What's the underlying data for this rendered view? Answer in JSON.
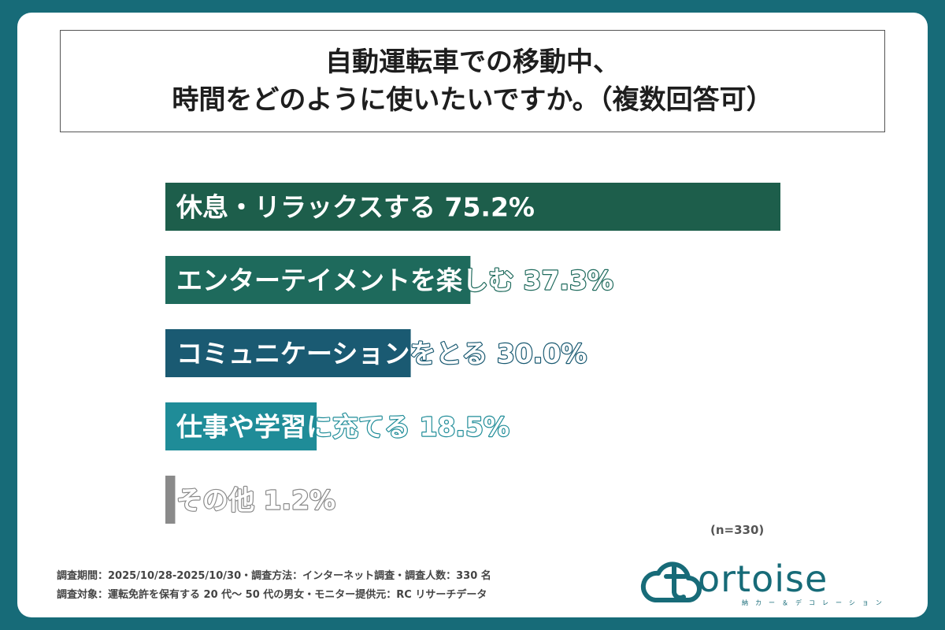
{
  "title": {
    "line1": "自動運転車での移動中、",
    "line2": "時間をどのように使いたいですか。（複数回答可）"
  },
  "chart_data": {
    "type": "bar",
    "orientation": "horizontal",
    "categories": [
      "休息・リラックスする",
      "エンターテイメントを楽しむ",
      "コミュニケーションをとる",
      "仕事や学習に充てる",
      "その他"
    ],
    "values": [
      75.2,
      37.3,
      30.0,
      18.5,
      1.2
    ],
    "value_labels": [
      "75.2%",
      "37.3%",
      "30.0%",
      "18.5%",
      "1.2%"
    ],
    "unit": "%",
    "xlim": [
      0,
      75.2
    ],
    "colors": [
      "#1d5e4b",
      "#1e6a5c",
      "#1a5a72",
      "#1f8c98",
      "#8a8a8a"
    ],
    "legend": "none",
    "grid": false
  },
  "sample_note": "(n=330)",
  "footer": {
    "line1": "調査期間：2025/10/28-2025/10/30・調査方法：インターネット調査・調査人数：330 名",
    "line2": "調査対象：運転免許を保有する 20 代～ 50 代の男女・モニター提供元：RC リサーチデータ"
  },
  "logo": {
    "word": "ortoise",
    "sub": "納カー＆デコレーション",
    "icon": "cloud-t-logo-icon"
  }
}
